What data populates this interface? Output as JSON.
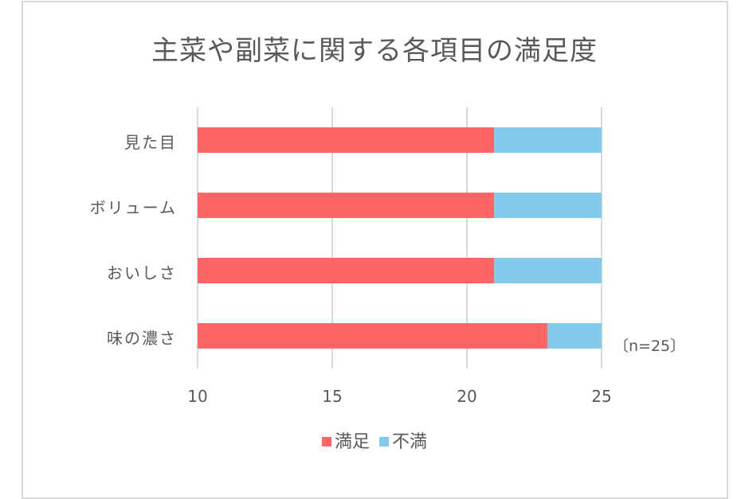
{
  "chart_data": {
    "type": "bar",
    "orientation": "horizontal",
    "stacked": true,
    "title": "主菜や副菜に関する各項目の満足度",
    "categories": [
      "見た目",
      "ボリューム",
      "おいしさ",
      "味の濃さ"
    ],
    "series": [
      {
        "name": "満足",
        "color": "#FF6565",
        "values": [
          21,
          21,
          21,
          23
        ]
      },
      {
        "name": "不満",
        "color": "#83CAEB",
        "values": [
          4,
          4,
          4,
          2
        ]
      }
    ],
    "xaxis": {
      "min": 10,
      "max": 25,
      "ticks": [
        10,
        15,
        20,
        25
      ]
    },
    "xlabel": "",
    "ylabel": "",
    "grid": true,
    "legend_position": "bottom",
    "annotation": "〔n=25〕"
  },
  "title": "主菜や副菜に関する各項目の満足度",
  "categories": [
    "見た目",
    "ボリューム",
    "おいしさ",
    "味の濃さ"
  ],
  "ticks": [
    "10",
    "15",
    "20",
    "25"
  ],
  "legend": [
    {
      "label": "満足",
      "color": "#FF6565"
    },
    {
      "label": "不満",
      "color": "#83CAEB"
    }
  ],
  "note": "〔n=25〕"
}
